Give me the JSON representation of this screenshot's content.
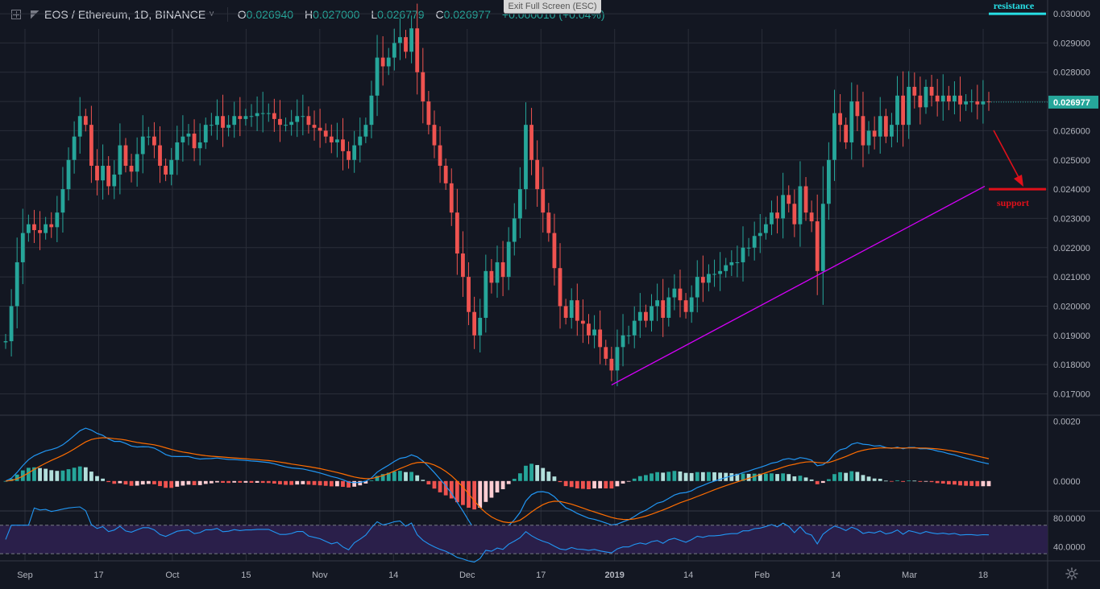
{
  "header": {
    "symbol": "EOS / Ethereum, 1D, BINANCE",
    "caret": "˅",
    "open_key": "O",
    "open": "0.026940",
    "high_key": "H",
    "high": "0.027000",
    "low_key": "L",
    "low": "0.026779",
    "close_key": "C",
    "close": "0.026977",
    "change": "+0.000010 (+0.04%)"
  },
  "exit_fullscreen": "Exit Full Screen (ESC)",
  "annotations": {
    "resistance": "resistance",
    "support": "support",
    "last_price": "0.026977"
  },
  "colors": {
    "background": "#131722",
    "up": "#26a69a",
    "down": "#ef5350",
    "grid": "#2a2e39",
    "trendline": "#d500f9",
    "resistance": "#27e0e6",
    "support": "#e0101a",
    "macd": "#2196f3",
    "signal": "#ff6d00",
    "rsi": "#2196f3",
    "rsi_band": "#2a1f4a"
  },
  "chart_data": [
    {
      "type": "candlestick",
      "title": "EOS / Ethereum, 1D, BINANCE",
      "y_tick_labels": [
        "0.030000",
        "0.029000",
        "0.028000",
        "0.027000",
        "0.026000",
        "0.025000",
        "0.024000",
        "0.023000",
        "0.022000",
        "0.021000",
        "0.020000",
        "0.019000",
        "0.018000",
        "0.017000"
      ],
      "ylim": [
        0.0166,
        0.0308
      ],
      "x_tick_labels": [
        "Sep",
        "17",
        "Oct",
        "15",
        "Nov",
        "14",
        "Dec",
        "17",
        "2019",
        "14",
        "Feb",
        "14",
        "Mar",
        "18"
      ],
      "grid": true,
      "close_series": [
        0.0188,
        0.02,
        0.0215,
        0.0225,
        0.0228,
        0.0226,
        0.0225,
        0.0228,
        0.0227,
        0.0232,
        0.024,
        0.025,
        0.0258,
        0.0265,
        0.0262,
        0.0248,
        0.0243,
        0.0248,
        0.0241,
        0.0245,
        0.0255,
        0.0248,
        0.0246,
        0.0252,
        0.0258,
        0.0258,
        0.0255,
        0.0248,
        0.0245,
        0.025,
        0.0256,
        0.0258,
        0.0259,
        0.0254,
        0.0256,
        0.0262,
        0.0262,
        0.0265,
        0.0261,
        0.0262,
        0.0265,
        0.0264,
        0.0265,
        0.0265,
        0.0266,
        0.0266,
        0.0266,
        0.0264,
        0.0262,
        0.0262,
        0.0263,
        0.0265,
        0.0265,
        0.0262,
        0.0261,
        0.026,
        0.0258,
        0.0256,
        0.0257,
        0.0253,
        0.025,
        0.0255,
        0.0258,
        0.0262,
        0.0272,
        0.0285,
        0.0282,
        0.0285,
        0.029,
        0.0292,
        0.0287,
        0.0295,
        0.028,
        0.027,
        0.0262,
        0.0255,
        0.0248,
        0.0242,
        0.0232,
        0.0218,
        0.021,
        0.0198,
        0.019,
        0.0196,
        0.0212,
        0.0208,
        0.0215,
        0.021,
        0.0222,
        0.023,
        0.024,
        0.0262,
        0.025,
        0.024,
        0.0232,
        0.0225,
        0.0213,
        0.02,
        0.0196,
        0.0202,
        0.0195,
        0.0194,
        0.019,
        0.0192,
        0.0186,
        0.0182,
        0.0178,
        0.0186,
        0.019,
        0.019,
        0.0195,
        0.0198,
        0.0195,
        0.02,
        0.0202,
        0.0196,
        0.0203,
        0.0206,
        0.0202,
        0.0198,
        0.0203,
        0.021,
        0.0208,
        0.0211,
        0.0211,
        0.0212,
        0.0214,
        0.0215,
        0.0215,
        0.022,
        0.022,
        0.0224,
        0.0225,
        0.0228,
        0.0232,
        0.023,
        0.0238,
        0.0235,
        0.0228,
        0.0241,
        0.0232,
        0.0229,
        0.0212,
        0.0235,
        0.025,
        0.0266,
        0.0262,
        0.0256,
        0.027,
        0.0265,
        0.0255,
        0.026,
        0.0258,
        0.0265,
        0.0258,
        0.0262,
        0.0272,
        0.0262,
        0.0275,
        0.0272,
        0.0268,
        0.0275,
        0.0272,
        0.027,
        0.0272,
        0.027,
        0.0272,
        0.0269,
        0.027,
        0.027,
        0.0269,
        0.027,
        0.026977
      ]
    },
    {
      "type": "line",
      "series": [
        {
          "values": []
        },
        {
          "values": []
        }
      ],
      "y_tick_labels": [
        "0.0020",
        "0.0000"
      ],
      "ylim": [
        -0.001,
        0.0022
      ]
    },
    {
      "type": "line",
      "series": [
        {
          "values": []
        }
      ],
      "y_tick_labels": [
        "80.0000",
        "40.0000"
      ],
      "ylim": [
        20,
        90
      ],
      "bands": [
        30,
        70
      ]
    }
  ]
}
